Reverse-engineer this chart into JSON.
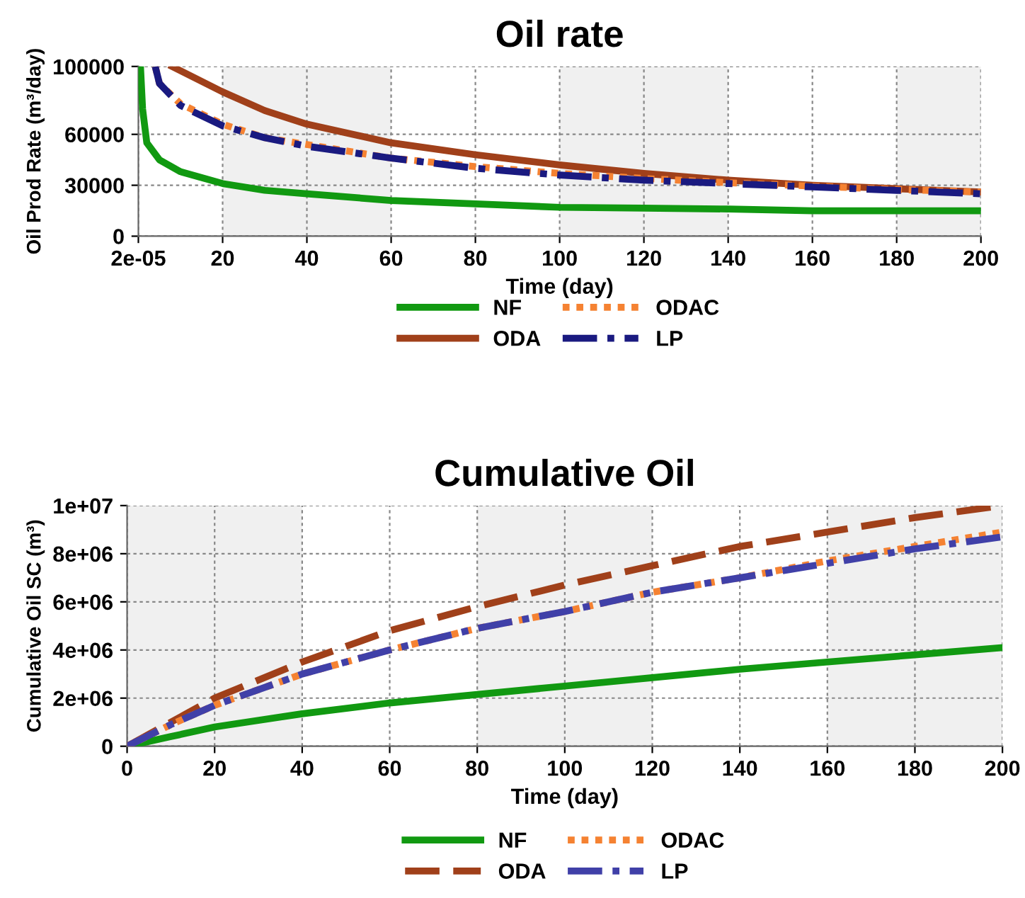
{
  "chart_data": [
    {
      "type": "line",
      "title": "Oil rate",
      "xlabel": "Time (day)",
      "ylabel": "Oil Prod Rate (m³/day)",
      "xlim": [
        2e-05,
        200
      ],
      "xticks": [
        2e-05,
        20,
        40,
        60,
        80,
        100,
        120,
        140,
        160,
        180,
        200
      ],
      "ylim": [
        0,
        100000
      ],
      "yticks": [
        0,
        30000,
        60000,
        100000
      ],
      "grid": true,
      "legend": "bottom",
      "marker": "none",
      "bands": [
        {
          "axis": "x",
          "from": 20,
          "to": 60,
          "color": "#f0f0f0"
        },
        {
          "axis": "x",
          "from": 100,
          "to": 140,
          "color": "#f0f0f0"
        },
        {
          "axis": "x",
          "from": 180,
          "to": 200,
          "color": "#f0f0f0"
        }
      ],
      "series": [
        {
          "name": "NF",
          "color": "#119911",
          "line_style": "solid",
          "x": [
            0.5,
            1,
            2,
            5,
            10,
            20,
            30,
            40,
            60,
            80,
            100,
            120,
            140,
            160,
            180,
            200
          ],
          "values": [
            100000,
            75000,
            55000,
            45000,
            38000,
            31000,
            27000,
            25000,
            21000,
            19000,
            17000,
            16500,
            16000,
            15000,
            15000,
            15000
          ]
        },
        {
          "name": "ODA",
          "color": "#a0401a",
          "line_style": "solid",
          "x": [
            8,
            20,
            30,
            40,
            60,
            80,
            100,
            120,
            140,
            160,
            180,
            200
          ],
          "values": [
            100000,
            85000,
            74000,
            66000,
            55000,
            48000,
            42000,
            37000,
            33000,
            30000,
            28000,
            26000
          ]
        },
        {
          "name": "ODAC",
          "color": "#f58232",
          "line_style": "dotted",
          "x": [
            4,
            5,
            10,
            20,
            30,
            40,
            60,
            80,
            100,
            120,
            140,
            160,
            180,
            200
          ],
          "values": [
            100000,
            90000,
            78000,
            66000,
            58000,
            54000,
            46000,
            41000,
            37000,
            34000,
            31500,
            29500,
            27500,
            26000
          ]
        },
        {
          "name": "LP",
          "color": "#1a1a80",
          "line_style": "dashdot",
          "x": [
            4,
            5,
            10,
            20,
            30,
            40,
            60,
            80,
            100,
            120,
            140,
            160,
            180,
            200
          ],
          "values": [
            100000,
            90000,
            77000,
            65000,
            58000,
            53000,
            46000,
            40000,
            36000,
            33000,
            31000,
            29000,
            27000,
            25000
          ]
        }
      ]
    },
    {
      "type": "line",
      "title": "Cumulative Oil",
      "xlabel": "Time (day)",
      "ylabel": "Cumulative Oil SC (m³)",
      "xlim": [
        0,
        200
      ],
      "xticks": [
        0,
        20,
        40,
        60,
        80,
        100,
        120,
        140,
        160,
        180,
        200
      ],
      "ylim": [
        0,
        10000000
      ],
      "yticks": [
        0,
        {
          "value": 2000000,
          "label": "2e+06"
        },
        {
          "value": 4000000,
          "label": "4e+06"
        },
        {
          "value": 6000000,
          "label": "6e+06"
        },
        {
          "value": 8000000,
          "label": "8e+06"
        },
        {
          "value": 10000000,
          "label": "1e+07"
        }
      ],
      "grid": true,
      "legend": "bottom",
      "marker": "none",
      "bands": [
        {
          "axis": "x",
          "from": 0,
          "to": 40,
          "color": "#f0f0f0"
        },
        {
          "axis": "x",
          "from": 80,
          "to": 120,
          "color": "#f0f0f0"
        },
        {
          "axis": "x",
          "from": 160,
          "to": 200,
          "color": "#f0f0f0"
        }
      ],
      "series": [
        {
          "name": "NF",
          "color": "#119911",
          "line_style": "solid",
          "x": [
            0,
            10,
            20,
            40,
            60,
            80,
            100,
            120,
            140,
            160,
            180,
            200
          ],
          "values": [
            0,
            400000,
            800000,
            1350000,
            1800000,
            2150000,
            2500000,
            2850000,
            3200000,
            3500000,
            3800000,
            4100000
          ]
        },
        {
          "name": "ODA",
          "color": "#a0401a",
          "line_style": "dashed",
          "x": [
            0,
            10,
            20,
            40,
            60,
            80,
            100,
            120,
            140,
            160,
            180,
            200
          ],
          "values": [
            0,
            1000000,
            2000000,
            3500000,
            4800000,
            5800000,
            6700000,
            7500000,
            8300000,
            8900000,
            9500000,
            10000000
          ]
        },
        {
          "name": "ODAC",
          "color": "#f58232",
          "line_style": "dotted",
          "x": [
            0,
            10,
            20,
            40,
            60,
            80,
            100,
            120,
            140,
            160,
            180,
            200
          ],
          "values": [
            0,
            900000,
            1700000,
            3000000,
            4000000,
            4900000,
            5600000,
            6400000,
            7000000,
            7700000,
            8300000,
            8900000
          ]
        },
        {
          "name": "LP",
          "color": "#4040a8",
          "line_style": "dashdot",
          "x": [
            0,
            10,
            20,
            40,
            60,
            80,
            100,
            120,
            140,
            160,
            180,
            200
          ],
          "values": [
            0,
            900000,
            1700000,
            3000000,
            4000000,
            4900000,
            5600000,
            6400000,
            7000000,
            7600000,
            8200000,
            8700000
          ]
        }
      ]
    }
  ]
}
